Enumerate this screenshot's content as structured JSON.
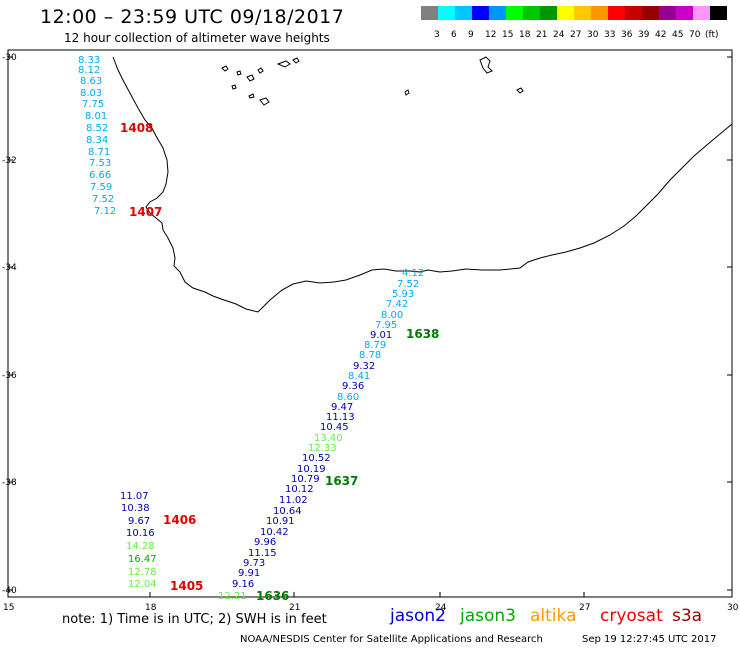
{
  "header": {
    "title": "12:00 – 23:59 UTC 09/18/2017",
    "subtitle": "12 hour collection of altimeter wave heights"
  },
  "colorbar": {
    "colors": [
      "#808080",
      "#00ffff",
      "#00c8ff",
      "#0000ff",
      "#0096ff",
      "#00ff00",
      "#00c800",
      "#009600",
      "#ffff00",
      "#ffc800",
      "#ff9600",
      "#ff0000",
      "#c80000",
      "#960000",
      "#960096",
      "#c800c8",
      "#ff96ff",
      "#000000"
    ],
    "labels": [
      "3",
      "6",
      "9",
      "12",
      "15",
      "18",
      "21",
      "24",
      "27",
      "30",
      "33",
      "36",
      "39",
      "42",
      "45",
      "70"
    ],
    "unit": "(ft)"
  },
  "axes": {
    "lat_labels": [
      "-30",
      "-32",
      "-34",
      "-36",
      "-38",
      "-40"
    ],
    "lon_labels": [
      "15",
      "18",
      "21",
      "24",
      "27",
      "30"
    ]
  },
  "pass_labels": [
    {
      "text": "1408",
      "color": "#e00000"
    },
    {
      "text": "1407",
      "color": "#e00000"
    },
    {
      "text": "1638",
      "color": "#007a00"
    },
    {
      "text": "1637",
      "color": "#007a00"
    },
    {
      "text": "1406",
      "color": "#e00000"
    },
    {
      "text": "1405",
      "color": "#e00000"
    },
    {
      "text": "1636",
      "color": "#007a00"
    }
  ],
  "wave_readings": [
    {
      "v": "8.33",
      "c": "#00aaee"
    },
    {
      "v": "8.12",
      "c": "#00aaee"
    },
    {
      "v": "8.63",
      "c": "#00aaee"
    },
    {
      "v": "8.03",
      "c": "#00aaee"
    },
    {
      "v": "7.75",
      "c": "#00aaee"
    },
    {
      "v": "8.01",
      "c": "#00aaee"
    },
    {
      "v": "8.52",
      "c": "#00aaee"
    },
    {
      "v": "8.34",
      "c": "#00aaee"
    },
    {
      "v": "8.71",
      "c": "#00aaee"
    },
    {
      "v": "7.53",
      "c": "#00aaee"
    },
    {
      "v": "6.66",
      "c": "#00aaee"
    },
    {
      "v": "7.59",
      "c": "#00aaee"
    },
    {
      "v": "7.52",
      "c": "#00aaee"
    },
    {
      "v": "7.12",
      "c": "#00aaee"
    },
    {
      "v": "4.12",
      "c": "#00aaee"
    },
    {
      "v": "7.52",
      "c": "#00aaee"
    },
    {
      "v": "5.93",
      "c": "#00aaee"
    },
    {
      "v": "7.42",
      "c": "#00aaee"
    },
    {
      "v": "8.00",
      "c": "#00aaee"
    },
    {
      "v": "7.95",
      "c": "#00aaee"
    },
    {
      "v": "9.01",
      "c": "#0000aa"
    },
    {
      "v": "8.79",
      "c": "#00aaee"
    },
    {
      "v": "8.78",
      "c": "#00aaee"
    },
    {
      "v": "9.32",
      "c": "#0000aa"
    },
    {
      "v": "8.41",
      "c": "#00aaee"
    },
    {
      "v": "9.36",
      "c": "#0000aa"
    },
    {
      "v": "8.60",
      "c": "#00aaee"
    },
    {
      "v": "9.47",
      "c": "#0000aa"
    },
    {
      "v": "11.13",
      "c": "#0000aa"
    },
    {
      "v": "10.45",
      "c": "#0000aa"
    },
    {
      "v": "13.40",
      "c": "#66ee44"
    },
    {
      "v": "12.33",
      "c": "#66ee44"
    },
    {
      "v": "10.52",
      "c": "#0000aa"
    },
    {
      "v": "10.19",
      "c": "#0000aa"
    },
    {
      "v": "10.79",
      "c": "#0000aa"
    },
    {
      "v": "10.12",
      "c": "#0000aa"
    },
    {
      "v": "11.02",
      "c": "#0000aa"
    },
    {
      "v": "10.64",
      "c": "#0000aa"
    },
    {
      "v": "10.91",
      "c": "#0000aa"
    },
    {
      "v": "10.42",
      "c": "#0000aa"
    },
    {
      "v": "9.96",
      "c": "#0000aa"
    },
    {
      "v": "11.15",
      "c": "#0000aa"
    },
    {
      "v": "9.73",
      "c": "#0000aa"
    },
    {
      "v": "9.91",
      "c": "#0000aa"
    },
    {
      "v": "9.16",
      "c": "#0000aa"
    },
    {
      "v": "12.21",
      "c": "#66ee44"
    },
    {
      "v": "11.07",
      "c": "#0000aa"
    },
    {
      "v": "10.38",
      "c": "#0000aa"
    },
    {
      "v": "9.67",
      "c": "#0000aa"
    },
    {
      "v": "10.16",
      "c": "#0000aa"
    },
    {
      "v": "14.28",
      "c": "#66ee44"
    },
    {
      "v": "16.47",
      "c": "#00aa00"
    },
    {
      "v": "12.78",
      "c": "#66ee44"
    },
    {
      "v": "12.04",
      "c": "#66ee44"
    }
  ],
  "footer": {
    "note": "note:  1) Time is in UTC;  2) SWH is in feet",
    "legend": [
      {
        "name": "jason2",
        "color": "#0000dd"
      },
      {
        "name": "jason3",
        "color": "#00aa00"
      },
      {
        "name": "altika",
        "color": "#ff9900"
      },
      {
        "name": "cryosat",
        "color": "#ee0000"
      },
      {
        "name": "s3a",
        "color": "#990000"
      }
    ],
    "credit": "NOAA/NESDIS Center for Satellite Applications and Research",
    "timestamp": "Sep 19 12:27:45 UTC 2017"
  }
}
